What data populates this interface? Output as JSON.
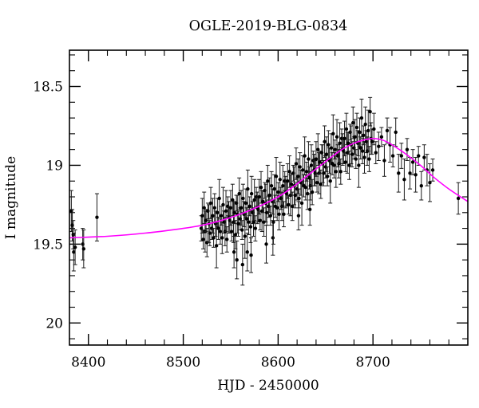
{
  "figure": {
    "title": "OGLE-2019-BLG-0834",
    "xlabel": "HJD - 2450000",
    "ylabel": "I magnitude"
  },
  "chart_data": {
    "type": "scatter",
    "title": "OGLE-2019-BLG-0834",
    "xlabel": "HJD - 2450000",
    "ylabel": "I magnitude",
    "xlim": [
      8380,
      8800
    ],
    "ylim": [
      18.27,
      20.14
    ],
    "y_axis_inverted": true,
    "grid": false,
    "legend": "none",
    "x_major_ticks": [
      8400,
      8500,
      8600,
      8700
    ],
    "x_minor_step": 20,
    "y_major_ticks": [
      18.5,
      19,
      19.5,
      20
    ],
    "y_minor_step": 0.1,
    "x_tick_labels": [
      "8400",
      "8500",
      "8600",
      "8700"
    ],
    "y_tick_labels": [
      "18.5",
      "19",
      "19.5",
      "20"
    ],
    "point_color": "#000000",
    "errorbar_color": "#1a1a1a",
    "curve_color": "#ff00ff",
    "frame_color": "#000000",
    "model_curve_t_mag": [
      [
        8380,
        19.46
      ],
      [
        8420,
        19.45
      ],
      [
        8460,
        19.43
      ],
      [
        8500,
        19.4
      ],
      [
        8520,
        19.38
      ],
      [
        8540,
        19.35
      ],
      [
        8560,
        19.31
      ],
      [
        8580,
        19.26
      ],
      [
        8600,
        19.2
      ],
      [
        8615,
        19.14
      ],
      [
        8630,
        19.07
      ],
      [
        8645,
        19.0
      ],
      [
        8660,
        18.93
      ],
      [
        8670,
        18.89
      ],
      [
        8680,
        18.86
      ],
      [
        8690,
        18.84
      ],
      [
        8700,
        18.83
      ],
      [
        8710,
        18.84
      ],
      [
        8720,
        18.87
      ],
      [
        8735,
        18.93
      ],
      [
        8750,
        19.0
      ],
      [
        8765,
        19.08
      ],
      [
        8780,
        19.15
      ],
      [
        8800,
        19.23
      ]
    ],
    "points_t_mag_err": [
      [
        8382,
        19.29,
        0.13
      ],
      [
        8383,
        19.38,
        0.1
      ],
      [
        8384,
        19.44,
        0.09
      ],
      [
        8384.5,
        19.55,
        0.12
      ],
      [
        8386,
        19.52,
        0.11
      ],
      [
        8394,
        19.5,
        0.1
      ],
      [
        8395,
        19.53,
        0.12
      ],
      [
        8409,
        19.33,
        0.15
      ],
      [
        8519,
        19.4,
        0.08
      ],
      [
        8520,
        19.32,
        0.11
      ],
      [
        8521,
        19.47,
        0.06
      ],
      [
        8522,
        19.27,
        0.1
      ],
      [
        8523,
        19.42,
        0.13
      ],
      [
        8524,
        19.35,
        0.07
      ],
      [
        8525,
        19.49,
        0.09
      ],
      [
        8526,
        19.29,
        0.05
      ],
      [
        8527,
        19.37,
        0.12
      ],
      [
        8528,
        19.43,
        0.08
      ],
      [
        8529,
        19.24,
        0.1
      ],
      [
        8530,
        19.4,
        0.07
      ],
      [
        8531,
        19.32,
        0.11
      ],
      [
        8532,
        19.46,
        0.06
      ],
      [
        8533,
        19.27,
        0.09
      ],
      [
        8534,
        19.37,
        0.08
      ],
      [
        8535,
        19.51,
        0.14
      ],
      [
        8536,
        19.3,
        0.09
      ],
      [
        8537,
        19.4,
        0.07
      ],
      [
        8538,
        19.21,
        0.12
      ],
      [
        8539,
        19.42,
        0.08
      ],
      [
        8540,
        19.32,
        0.06
      ],
      [
        8541,
        19.46,
        0.1
      ],
      [
        8542,
        19.25,
        0.11
      ],
      [
        8543,
        19.36,
        0.07
      ],
      [
        8544,
        19.42,
        0.09
      ],
      [
        8545,
        19.29,
        0.13
      ],
      [
        8546,
        19.47,
        0.08
      ],
      [
        8547,
        19.26,
        0.06
      ],
      [
        8548,
        19.33,
        0.1
      ],
      [
        8549,
        19.35,
        0.08
      ],
      [
        8550,
        19.27,
        0.11
      ],
      [
        8551,
        19.42,
        0.06
      ],
      [
        8552,
        19.22,
        0.1
      ],
      [
        8553,
        19.36,
        0.13
      ],
      [
        8553.5,
        19.55,
        0.1
      ],
      [
        8554,
        19.3,
        0.07
      ],
      [
        8555,
        19.44,
        0.09
      ],
      [
        8556,
        19.24,
        0.05
      ],
      [
        8556.5,
        19.6,
        0.12
      ],
      [
        8557,
        19.31,
        0.12
      ],
      [
        8558,
        19.37,
        0.08
      ],
      [
        8559,
        19.18,
        0.1
      ],
      [
        8560,
        19.34,
        0.07
      ],
      [
        8561,
        19.27,
        0.11
      ],
      [
        8562,
        19.41,
        0.06
      ],
      [
        8562.5,
        19.63,
        0.13
      ],
      [
        8563,
        19.21,
        0.09
      ],
      [
        8564,
        19.31,
        0.08
      ],
      [
        8565,
        19.45,
        0.14
      ],
      [
        8566,
        19.24,
        0.09
      ],
      [
        8567,
        19.34,
        0.07
      ],
      [
        8567.5,
        19.55,
        0.12
      ],
      [
        8568,
        19.15,
        0.12
      ],
      [
        8569,
        19.36,
        0.08
      ],
      [
        8570,
        19.26,
        0.06
      ],
      [
        8571,
        19.39,
        0.1
      ],
      [
        8571.5,
        19.57,
        0.11
      ],
      [
        8572,
        19.18,
        0.11
      ],
      [
        8573,
        19.3,
        0.07
      ],
      [
        8574,
        19.36,
        0.09
      ],
      [
        8575,
        19.22,
        0.13
      ],
      [
        8576,
        19.4,
        0.08
      ],
      [
        8577,
        19.2,
        0.06
      ],
      [
        8578,
        19.27,
        0.1
      ],
      [
        8579,
        19.28,
        0.08
      ],
      [
        8580,
        19.2,
        0.11
      ],
      [
        8581,
        19.35,
        0.06
      ],
      [
        8582,
        19.14,
        0.1
      ],
      [
        8583,
        19.29,
        0.13
      ],
      [
        8584,
        19.23,
        0.07
      ],
      [
        8585,
        19.36,
        0.09
      ],
      [
        8586,
        19.16,
        0.05
      ],
      [
        8587,
        19.24,
        0.12
      ],
      [
        8587.5,
        19.5,
        0.12
      ],
      [
        8588,
        19.3,
        0.08
      ],
      [
        8589,
        19.1,
        0.1
      ],
      [
        8590,
        19.26,
        0.07
      ],
      [
        8591,
        19.19,
        0.11
      ],
      [
        8592,
        19.32,
        0.06
      ],
      [
        8593,
        19.13,
        0.09
      ],
      [
        8594,
        19.23,
        0.08
      ],
      [
        8594.5,
        19.46,
        0.11
      ],
      [
        8595,
        19.36,
        0.14
      ],
      [
        8596,
        19.15,
        0.09
      ],
      [
        8597,
        19.26,
        0.07
      ],
      [
        8598,
        19.07,
        0.12
      ],
      [
        8599,
        19.27,
        0.08
      ],
      [
        8600,
        19.17,
        0.06
      ],
      [
        8601,
        19.31,
        0.1
      ],
      [
        8602,
        19.09,
        0.11
      ],
      [
        8603,
        19.21,
        0.07
      ],
      [
        8604,
        19.26,
        0.09
      ],
      [
        8605,
        19.13,
        0.13
      ],
      [
        8606,
        19.31,
        0.08
      ],
      [
        8607,
        19.1,
        0.06
      ],
      [
        8608,
        19.17,
        0.1
      ],
      [
        8609,
        19.18,
        0.08
      ],
      [
        8610,
        19.1,
        0.11
      ],
      [
        8611,
        19.25,
        0.06
      ],
      [
        8612,
        19.04,
        0.1
      ],
      [
        8613,
        19.19,
        0.13
      ],
      [
        8614,
        19.12,
        0.07
      ],
      [
        8615,
        19.26,
        0.09
      ],
      [
        8616,
        19.05,
        0.05
      ],
      [
        8617,
        19.13,
        0.12
      ],
      [
        8618,
        19.19,
        0.08
      ],
      [
        8619,
        18.99,
        0.1
      ],
      [
        8620,
        19.15,
        0.07
      ],
      [
        8621,
        19.07,
        0.11
      ],
      [
        8621.5,
        19.32,
        0.09
      ],
      [
        8622,
        19.21,
        0.06
      ],
      [
        8623,
        19.01,
        0.09
      ],
      [
        8624,
        19.11,
        0.08
      ],
      [
        8625,
        19.24,
        0.14
      ],
      [
        8626,
        19.03,
        0.09
      ],
      [
        8627,
        19.13,
        0.07
      ],
      [
        8628,
        18.94,
        0.12
      ],
      [
        8629,
        19.14,
        0.08
      ],
      [
        8630,
        19.04,
        0.06
      ],
      [
        8631,
        19.18,
        0.1
      ],
      [
        8632,
        18.96,
        0.11
      ],
      [
        8633,
        19.08,
        0.07
      ],
      [
        8633.5,
        19.28,
        0.1
      ],
      [
        8634,
        19.13,
        0.09
      ],
      [
        8635,
        19.0,
        0.13
      ],
      [
        8636,
        19.17,
        0.08
      ],
      [
        8637,
        18.97,
        0.06
      ],
      [
        8638,
        19.03,
        0.1
      ],
      [
        8639,
        19.05,
        0.08
      ],
      [
        8640,
        18.96,
        0.11
      ],
      [
        8641,
        19.11,
        0.06
      ],
      [
        8642,
        18.9,
        0.1
      ],
      [
        8643,
        19.05,
        0.13
      ],
      [
        8644,
        18.98,
        0.07
      ],
      [
        8645,
        19.12,
        0.09
      ],
      [
        8646,
        18.92,
        0.05
      ],
      [
        8647,
        18.99,
        0.12
      ],
      [
        8648,
        19.05,
        0.08
      ],
      [
        8649,
        18.85,
        0.1
      ],
      [
        8650,
        19.01,
        0.07
      ],
      [
        8651,
        18.93,
        0.11
      ],
      [
        8652,
        19.07,
        0.06
      ],
      [
        8653,
        18.87,
        0.09
      ],
      [
        8654,
        18.97,
        0.08
      ],
      [
        8655,
        19.1,
        0.14
      ],
      [
        8656,
        18.89,
        0.09
      ],
      [
        8657,
        18.99,
        0.07
      ],
      [
        8658,
        18.8,
        0.12
      ],
      [
        8659,
        19.0,
        0.08
      ],
      [
        8660,
        18.9,
        0.06
      ],
      [
        8661,
        19.04,
        0.1
      ],
      [
        8662,
        18.82,
        0.11
      ],
      [
        8663,
        18.94,
        0.07
      ],
      [
        8664,
        18.99,
        0.09
      ],
      [
        8665,
        18.86,
        0.13
      ],
      [
        8666,
        19.04,
        0.08
      ],
      [
        8667,
        18.83,
        0.06
      ],
      [
        8668,
        18.9,
        0.1
      ],
      [
        8669,
        18.91,
        0.08
      ],
      [
        8670,
        18.83,
        0.11
      ],
      [
        8671,
        18.98,
        0.06
      ],
      [
        8672,
        18.77,
        0.1
      ],
      [
        8673,
        18.92,
        0.13
      ],
      [
        8674,
        18.86,
        0.07
      ],
      [
        8675,
        19.0,
        0.09
      ],
      [
        8676,
        18.79,
        0.05
      ],
      [
        8677,
        18.87,
        0.12
      ],
      [
        8678,
        18.93,
        0.08
      ],
      [
        8679,
        18.73,
        0.1
      ],
      [
        8680,
        18.89,
        0.07
      ],
      [
        8681,
        18.82,
        0.11
      ],
      [
        8682,
        18.96,
        0.06
      ],
      [
        8683,
        18.76,
        0.09
      ],
      [
        8684,
        18.86,
        0.08
      ],
      [
        8685,
        19.0,
        0.14
      ],
      [
        8686,
        18.79,
        0.09
      ],
      [
        8687,
        18.89,
        0.07
      ],
      [
        8688,
        18.7,
        0.12
      ],
      [
        8689,
        18.91,
        0.08
      ],
      [
        8690,
        18.81,
        0.06
      ],
      [
        8691,
        18.95,
        0.1
      ],
      [
        8692,
        18.74,
        0.11
      ],
      [
        8693,
        18.85,
        0.07
      ],
      [
        8694,
        18.91,
        0.09
      ],
      [
        8695,
        18.78,
        0.13
      ],
      [
        8696,
        18.96,
        0.08
      ],
      [
        8697,
        18.66,
        0.09
      ],
      [
        8698,
        18.83,
        0.1
      ],
      [
        8699,
        18.85,
        0.08
      ],
      [
        8701,
        18.77,
        0.1
      ],
      [
        8703,
        18.92,
        0.07
      ],
      [
        8706,
        18.88,
        0.09
      ],
      [
        8709,
        18.82,
        0.06
      ],
      [
        8712,
        18.97,
        0.1
      ],
      [
        8715,
        18.78,
        0.08
      ],
      [
        8718,
        18.87,
        0.11
      ],
      [
        8721,
        18.94,
        0.07
      ],
      [
        8724,
        18.79,
        0.09
      ],
      [
        8727,
        19.05,
        0.12
      ],
      [
        8730,
        18.94,
        0.08
      ],
      [
        8733,
        19.09,
        0.13
      ],
      [
        8736,
        18.9,
        0.07
      ],
      [
        8739,
        19.05,
        0.1
      ],
      [
        8742,
        18.98,
        0.08
      ],
      [
        8745,
        19.06,
        0.11
      ],
      [
        8748,
        18.94,
        0.06
      ],
      [
        8751,
        19.13,
        0.09
      ],
      [
        8754,
        18.95,
        0.08
      ],
      [
        8757,
        19.03,
        0.1
      ],
      [
        8760,
        19.11,
        0.12
      ],
      [
        8763,
        19.03,
        0.07
      ],
      [
        8790,
        19.21,
        0.1
      ]
    ]
  }
}
